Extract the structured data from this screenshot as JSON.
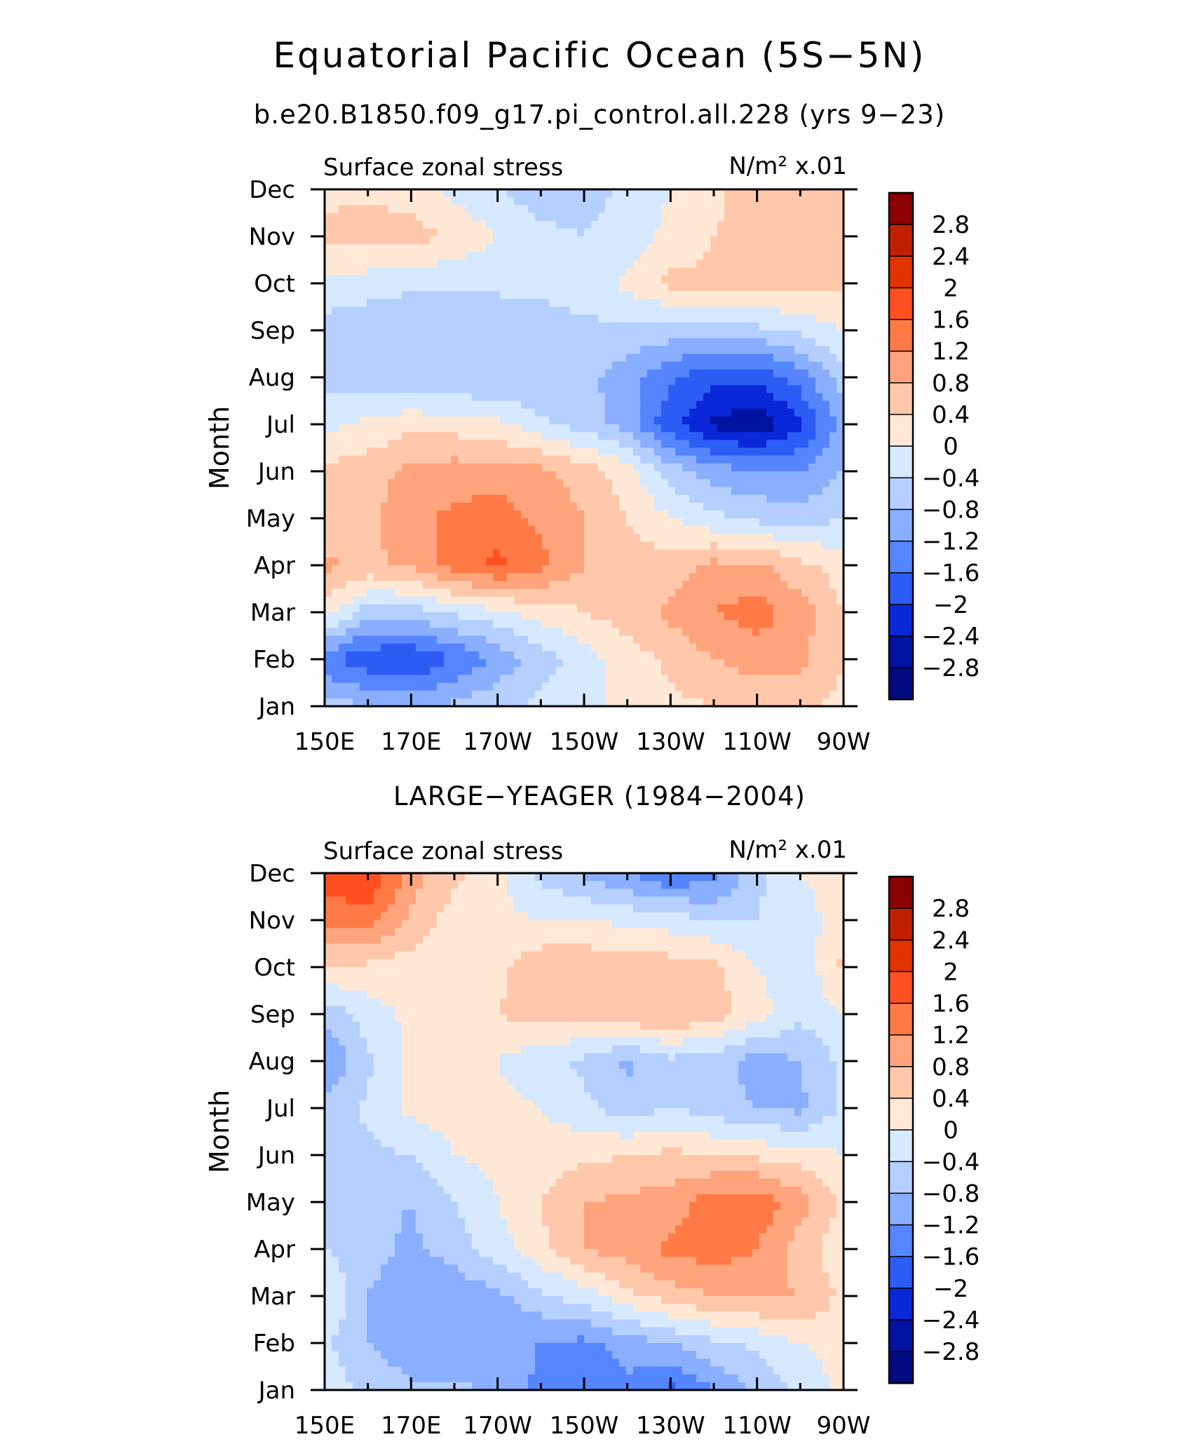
{
  "title": "Equatorial Pacific Ocean (5S−5N)",
  "subtitle": "b.e20.B1850.f09_g17.pi_control.all.228 (yrs 9−23)",
  "colorbar": {
    "levels": [
      "2.8",
      "2.4",
      "2",
      "1.6",
      "1.2",
      "0.8",
      "0.4",
      "0",
      "−0.4",
      "−0.8",
      "−1.2",
      "−1.6",
      "−2",
      "−2.4",
      "−2.8"
    ],
    "colors": [
      "#8b0000",
      "#c02000",
      "#e03300",
      "#ff5020",
      "#ff7a45",
      "#ffa47c",
      "#ffc8aa",
      "#ffe8d6",
      "#d6e9ff",
      "#b5cfff",
      "#8aafff",
      "#5585ff",
      "#2d5cf5",
      "#0a28d8",
      "#0012a0",
      "#000a80"
    ]
  },
  "chart_data": [
    {
      "type": "heatmap",
      "panel_title": "",
      "left_label": "Surface zonal stress",
      "units": "N/m² x.01",
      "ylabel": "Month",
      "xlabel": "",
      "x_ticklabels": [
        "150E",
        "170E",
        "170W",
        "150W",
        "130W",
        "110W",
        "90W"
      ],
      "y_ticklabels": [
        "Jan",
        "Feb",
        "Mar",
        "Apr",
        "May",
        "Jun",
        "Jul",
        "Aug",
        "Sep",
        "Oct",
        "Nov",
        "Dec"
      ],
      "x_values_deg": [
        150,
        160,
        170,
        180,
        190,
        200,
        210,
        220,
        230,
        240,
        250,
        260,
        270
      ],
      "values": [
        [
          -0.6,
          -0.8,
          -0.9,
          -0.7,
          -0.5,
          -0.3,
          -0.1,
          0.1,
          0.3,
          0.4,
          0.5,
          0.5,
          0.3
        ],
        [
          -1.5,
          -1.9,
          -2.0,
          -1.6,
          -1.1,
          -0.6,
          -0.2,
          0.2,
          0.5,
          0.8,
          1.0,
          0.9,
          0.4
        ],
        [
          0.2,
          -0.6,
          -0.6,
          -0.3,
          -0.1,
          0.2,
          0.4,
          0.6,
          0.9,
          1.2,
          1.4,
          1.0,
          0.4
        ],
        [
          0.9,
          0.7,
          0.9,
          1.4,
          1.7,
          1.3,
          0.8,
          0.6,
          0.6,
          0.9,
          0.9,
          0.5,
          0.2
        ],
        [
          0.4,
          0.7,
          1.1,
          1.3,
          1.4,
          1.1,
          0.8,
          0.4,
          0.0,
          -0.3,
          -0.5,
          -0.6,
          -0.4
        ],
        [
          0.5,
          0.6,
          0.9,
          1.0,
          1.0,
          0.9,
          0.6,
          0.2,
          -0.6,
          -1.0,
          -1.2,
          -1.2,
          -0.8
        ],
        [
          -0.1,
          0.1,
          0.3,
          0.2,
          0.1,
          -0.3,
          -0.6,
          -1.0,
          -1.9,
          -2.5,
          -2.7,
          -2.1,
          -1.0
        ],
        [
          -0.6,
          -0.7,
          -0.8,
          -0.8,
          -0.8,
          -0.8,
          -0.7,
          -1.0,
          -1.5,
          -1.9,
          -1.9,
          -1.4,
          -0.6
        ],
        [
          -0.6,
          -0.7,
          -0.8,
          -0.8,
          -0.7,
          -0.6,
          -0.5,
          -0.5,
          -0.6,
          -0.6,
          -0.5,
          -0.3,
          0.0
        ],
        [
          -0.1,
          -0.2,
          -0.3,
          -0.3,
          -0.3,
          -0.3,
          -0.2,
          0.1,
          0.5,
          0.5,
          0.5,
          0.6,
          0.5
        ],
        [
          0.5,
          0.6,
          0.6,
          0.3,
          0.0,
          -0.3,
          -0.4,
          -0.2,
          0.1,
          0.4,
          0.6,
          0.6,
          0.5
        ],
        [
          0.3,
          0.3,
          0.2,
          -0.1,
          -0.4,
          -0.6,
          -0.6,
          -0.3,
          0.0,
          0.3,
          0.6,
          0.6,
          0.6
        ]
      ]
    },
    {
      "type": "heatmap",
      "panel_title": "LARGE−YEAGER (1984−2004)",
      "left_label": "Surface zonal stress",
      "units": "N/m² x.01",
      "ylabel": "Month",
      "xlabel": "",
      "x_ticklabels": [
        "150E",
        "170E",
        "170W",
        "150W",
        "130W",
        "110W",
        "90W"
      ],
      "y_ticklabels": [
        "Jan",
        "Feb",
        "Mar",
        "Apr",
        "May",
        "Jun",
        "Jul",
        "Aug",
        "Sep",
        "Oct",
        "Nov",
        "Dec"
      ],
      "x_values_deg": [
        150,
        160,
        170,
        180,
        190,
        200,
        210,
        220,
        230,
        240,
        250,
        260,
        270
      ],
      "values": [
        [
          -0.2,
          -0.5,
          -0.7,
          -0.7,
          -0.9,
          -1.3,
          -1.6,
          -1.3,
          -1.7,
          -1.2,
          -0.7,
          -0.3,
          0.1
        ],
        [
          -0.3,
          -0.8,
          -1.1,
          -1.2,
          -1.1,
          -1.2,
          -1.3,
          -1.0,
          -0.8,
          -0.5,
          -0.3,
          0.0,
          0.2
        ],
        [
          0.0,
          -0.8,
          -1.2,
          -1.1,
          -0.9,
          -0.5,
          -0.2,
          0.3,
          0.6,
          0.8,
          0.9,
          0.8,
          0.3
        ],
        [
          -0.4,
          -0.6,
          -0.9,
          -0.6,
          -0.2,
          0.3,
          0.8,
          1.0,
          1.3,
          1.4,
          1.2,
          0.6,
          0.1
        ],
        [
          -0.5,
          -0.7,
          -0.8,
          -0.4,
          0.0,
          0.4,
          0.8,
          0.9,
          1.0,
          1.4,
          1.5,
          1.0,
          0.3
        ],
        [
          -0.4,
          -0.5,
          -0.4,
          0.0,
          0.1,
          0.2,
          0.3,
          0.4,
          0.5,
          0.4,
          0.3,
          0.2,
          0.0
        ],
        [
          -0.7,
          -0.3,
          0.1,
          0.2,
          0.1,
          0.0,
          -0.3,
          -0.6,
          -0.4,
          -0.6,
          -0.8,
          -0.9,
          -0.3
        ],
        [
          -1.2,
          -0.5,
          0.1,
          0.2,
          0.0,
          -0.3,
          -0.5,
          -0.9,
          -0.5,
          -0.6,
          -1.0,
          -0.8,
          -0.3
        ],
        [
          -0.7,
          -0.2,
          0.1,
          0.2,
          0.4,
          0.6,
          0.6,
          0.8,
          0.8,
          0.6,
          0.2,
          -0.3,
          0.0
        ],
        [
          0.4,
          0.3,
          0.2,
          0.2,
          0.3,
          0.7,
          0.7,
          0.6,
          0.6,
          0.5,
          0.0,
          -0.3,
          0.5
        ],
        [
          1.3,
          1.4,
          0.7,
          0.2,
          0.1,
          0.0,
          0.0,
          -0.1,
          -0.2,
          -0.4,
          -0.4,
          -0.2,
          0.2
        ],
        [
          1.9,
          2.0,
          1.0,
          0.5,
          0.1,
          -0.5,
          -0.9,
          -1.2,
          -1.6,
          -1.4,
          -0.5,
          0.0,
          0.2
        ]
      ]
    }
  ]
}
